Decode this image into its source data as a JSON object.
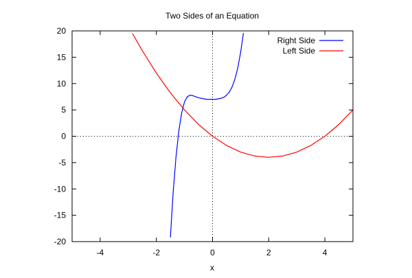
{
  "chart_data": {
    "type": "line",
    "title": "Two Sides of an Equation",
    "xlabel": "x",
    "ylabel": "",
    "xlim": [
      -5,
      5
    ],
    "ylim": [
      -20,
      20
    ],
    "x_ticks": [
      -4,
      -2,
      0,
      2,
      4
    ],
    "y_ticks": [
      -20,
      -15,
      -10,
      -5,
      0,
      5,
      10,
      15,
      20
    ],
    "x_tick_labels": [
      "-4",
      "-2",
      "0",
      "2",
      "4"
    ],
    "y_tick_labels": [
      "-20",
      "-15",
      "-10",
      "-5",
      "0",
      "5",
      "10",
      "15",
      "20"
    ],
    "legend_position": "top-right",
    "zero_axes": "dotted",
    "grid": false,
    "series": [
      {
        "name": "Right Side",
        "color": "#0000ff",
        "x": [
          -1.5,
          -1.4,
          -1.3,
          -1.2,
          -1.1,
          -1.0,
          -0.9,
          -0.8,
          -0.7,
          -0.6,
          -0.5,
          -0.4,
          -0.3,
          -0.2,
          -0.1,
          0.0,
          0.1,
          0.2,
          0.3,
          0.4,
          0.5,
          0.6,
          0.7,
          0.8,
          0.9,
          1.0,
          1.1
        ],
        "y": [
          -19.2,
          -10.5,
          -3.9,
          1.0,
          4.4,
          6.5,
          7.5,
          7.8,
          7.7,
          7.5,
          7.3,
          7.2,
          7.1,
          7.0,
          7.0,
          7.0,
          7.0,
          7.1,
          7.2,
          7.4,
          7.8,
          8.4,
          9.4,
          10.9,
          13.0,
          15.9,
          19.6
        ]
      },
      {
        "name": "Left Side",
        "color": "#ff0000",
        "x": [
          -2.85,
          -2.5,
          -2.0,
          -1.5,
          -1.0,
          -0.5,
          0.0,
          0.5,
          1.0,
          1.5,
          2.0,
          2.5,
          3.0,
          3.5,
          4.0,
          4.5,
          5.0
        ],
        "y": [
          19.5,
          16.25,
          12.0,
          8.25,
          5.0,
          2.25,
          0.0,
          -1.75,
          -3.0,
          -3.75,
          -4.0,
          -3.75,
          -3.0,
          -1.75,
          0.0,
          2.25,
          5.0
        ]
      }
    ]
  }
}
